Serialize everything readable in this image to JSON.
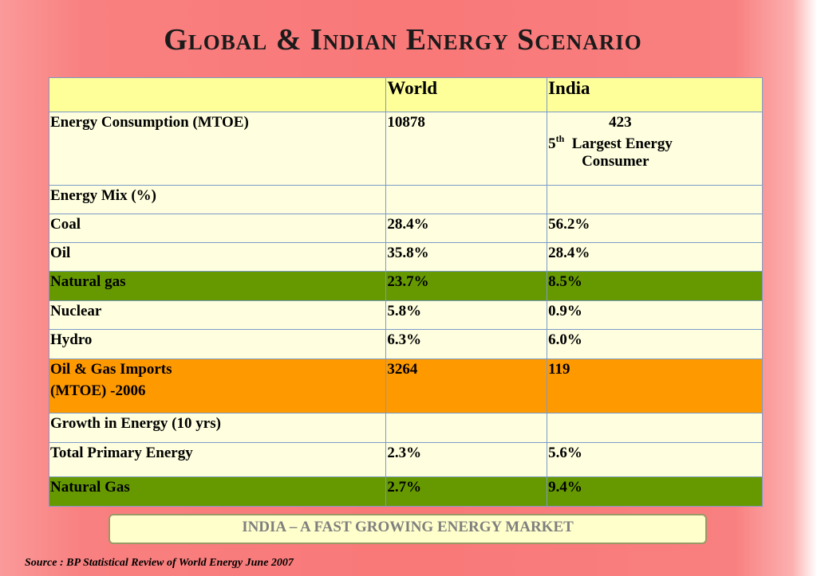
{
  "title": "Global & Indian Energy Scenario",
  "table": {
    "headers": [
      "",
      "World",
      "India"
    ],
    "energy_consumption": {
      "label": "Energy Consumption (MTOE)",
      "world": "10878",
      "india_value": "423",
      "india_rank": "5",
      "india_rank_suffix": "th",
      "india_note_line1": "Largest Energy",
      "india_note_line2": "Consumer"
    },
    "energy_mix_label": "Energy Mix (%)",
    "rows": [
      {
        "label": "Coal",
        "world": "28.4%",
        "india": "56.2%"
      },
      {
        "label": "Oil",
        "world": "35.8%",
        "india": "28.4%"
      },
      {
        "label": "Natural gas",
        "world": "23.7%",
        "india": "8.5%"
      },
      {
        "label": "Nuclear",
        "world": "5.8%",
        "india": "0.9%"
      },
      {
        "label": "Hydro",
        "world": "6.3%",
        "india": "6.0%"
      }
    ],
    "imports": {
      "label_line1": "Oil & Gas Imports",
      "label_line2": "(MTOE) -2006",
      "world": "3264",
      "india": "119"
    },
    "growth_label": "Growth in Energy (10 yrs)",
    "growth_rows": [
      {
        "label": "Total Primary Energy",
        "world": "2.3%",
        "india": "5.6%"
      },
      {
        "label": "Natural Gas",
        "world": "2.7%",
        "india": "9.4%"
      }
    ]
  },
  "banner": "INDIA – A FAST GROWING ENERGY MARKET",
  "source": "Source : BP Statistical Review of World Energy June 2007",
  "colors": {
    "background": "#f97878",
    "header_row": "#ffff99",
    "cell": "#ffffe0",
    "natural_gas_highlight": "#669900",
    "imports_highlight": "#ff9900",
    "banner_text": "#7f7f7f"
  }
}
